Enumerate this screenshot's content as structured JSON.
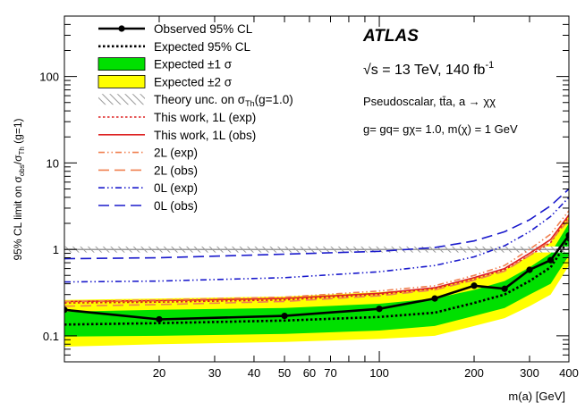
{
  "chart_data": {
    "type": "line",
    "xscale": "log",
    "yscale": "log",
    "xlim": [
      10,
      400
    ],
    "ylim": [
      0.05,
      500
    ],
    "xlabel": "m(a) [GeV]",
    "ylabel": "95% CL limit on σobs/σTh (g=1)",
    "ylabel_parts": {
      "main": "95% CL limit on σ",
      "sub1": "obs",
      "slash": "/σ",
      "sub2": "Th",
      "tail": " (g=1)"
    },
    "x_ticks": [
      20,
      30,
      40,
      50,
      60,
      70,
      100,
      200,
      300,
      400
    ],
    "x_tick_labels": [
      "20",
      "30",
      "40",
      "50",
      "60",
      "70",
      "100",
      "200",
      "300",
      "400"
    ],
    "y_ticks": [
      0.1,
      1,
      10,
      100
    ],
    "y_tick_labels": [
      "0.1",
      "1",
      "10",
      "100"
    ],
    "annotations": {
      "experiment": "ATLAS",
      "energy_prefix": "√s = 13 TeV, 140 fb",
      "energy_sup": "-1",
      "process": "Pseudoscalar, tt̄a, a → χχ",
      "couplings": "g= gq= gχ= 1.0, m(χ) = 1 GeV"
    },
    "bands": [
      {
        "name": "Expected ±2 σ",
        "color": "#ffff00",
        "x": [
          10,
          20,
          50,
          100,
          150,
          200,
          250,
          300,
          350,
          400
        ],
        "lower": [
          0.075,
          0.08,
          0.085,
          0.092,
          0.1,
          0.13,
          0.16,
          0.22,
          0.3,
          0.65
        ],
        "upper": [
          0.26,
          0.27,
          0.285,
          0.32,
          0.36,
          0.46,
          0.58,
          0.85,
          1.2,
          2.6
        ]
      },
      {
        "name": "Expected ±1 σ",
        "color": "#00e000",
        "x": [
          10,
          20,
          50,
          100,
          150,
          200,
          250,
          300,
          350,
          400
        ],
        "lower": [
          0.098,
          0.1,
          0.105,
          0.115,
          0.13,
          0.17,
          0.21,
          0.3,
          0.4,
          0.85
        ],
        "upper": [
          0.19,
          0.2,
          0.21,
          0.235,
          0.27,
          0.34,
          0.43,
          0.62,
          0.9,
          2.0
        ]
      }
    ],
    "series": [
      {
        "name": "Theory unc. on σTh(g=1.0)",
        "legend_main": "Theory unc. on σ",
        "legend_sub": "Th",
        "legend_tail": "(g=1.0)",
        "style": "hatch",
        "x": [
          10,
          400
        ],
        "lower": [
          0.92,
          0.92
        ],
        "upper": [
          1.08,
          1.08
        ]
      },
      {
        "name": "This work, 1L (exp)",
        "style": "dotted",
        "color": "#dd2222",
        "x": [
          10,
          20,
          50,
          100,
          150,
          200,
          250,
          300,
          350,
          400
        ],
        "values": [
          0.24,
          0.245,
          0.26,
          0.3,
          0.35,
          0.45,
          0.58,
          0.85,
          1.2,
          2.4
        ]
      },
      {
        "name": "This work, 1L (obs)",
        "style": "solid",
        "color": "#dd2222",
        "x": [
          10,
          20,
          50,
          100,
          150,
          200,
          250,
          300,
          350,
          400
        ],
        "values": [
          0.25,
          0.255,
          0.27,
          0.31,
          0.36,
          0.47,
          0.6,
          0.9,
          1.3,
          2.5
        ]
      },
      {
        "name": "2L (exp)",
        "style": "dashdotdot",
        "color": "#f08050",
        "x": [
          10,
          20,
          50,
          100,
          150,
          200,
          250,
          300,
          350,
          400
        ],
        "values": [
          0.25,
          0.26,
          0.28,
          0.33,
          0.38,
          0.5,
          0.65,
          1.0,
          1.5,
          2.8
        ]
      },
      {
        "name": "2L (obs)",
        "style": "longdash",
        "color": "#f08050",
        "x": [
          10,
          20,
          50,
          100,
          150,
          200,
          250,
          300,
          350,
          400
        ],
        "values": [
          0.22,
          0.23,
          0.25,
          0.29,
          0.34,
          0.44,
          0.56,
          0.85,
          1.25,
          2.2
        ]
      },
      {
        "name": "0L (exp)",
        "style": "dashdotdot",
        "color": "#1a1acc",
        "x": [
          10,
          20,
          50,
          100,
          150,
          200,
          250,
          300,
          350,
          400
        ],
        "values": [
          0.42,
          0.43,
          0.47,
          0.55,
          0.65,
          0.82,
          1.1,
          1.6,
          2.4,
          4.0
        ]
      },
      {
        "name": "0L (obs)",
        "style": "longdash",
        "color": "#1a1acc",
        "x": [
          10,
          20,
          50,
          100,
          150,
          200,
          250,
          300,
          350,
          400
        ],
        "values": [
          0.78,
          0.8,
          0.88,
          0.95,
          1.05,
          1.25,
          1.6,
          2.2,
          3.2,
          5.0
        ]
      },
      {
        "name": "Expected 95% CL",
        "style": "dotted",
        "color": "#000000",
        "x": [
          10,
          20,
          50,
          100,
          150,
          200,
          250,
          300,
          350,
          400
        ],
        "values": [
          0.135,
          0.14,
          0.15,
          0.165,
          0.185,
          0.24,
          0.3,
          0.43,
          0.62,
          1.3
        ]
      },
      {
        "name": "Observed 95% CL",
        "style": "solid-markers",
        "color": "#000000",
        "x": [
          10,
          20,
          50,
          100,
          150,
          200,
          250,
          300,
          350,
          400
        ],
        "values": [
          0.2,
          0.155,
          0.17,
          0.205,
          0.27,
          0.38,
          0.35,
          0.58,
          0.75,
          1.45
        ]
      }
    ],
    "legend": {
      "position": "top-left",
      "entries": [
        {
          "label": "Observed 95% CL",
          "kind": "observed"
        },
        {
          "label": "Expected 95% CL",
          "kind": "expected"
        },
        {
          "label": "Expected ±1 σ",
          "kind": "band1"
        },
        {
          "label": "Expected ±2 σ",
          "kind": "band2"
        },
        {
          "label": "Theory unc. on σTh(g=1.0)",
          "kind": "theory"
        },
        {
          "label": "This work, 1L (exp)",
          "kind": "work_exp"
        },
        {
          "label": "This work, 1L (obs)",
          "kind": "work_obs"
        },
        {
          "label": "2L (exp)",
          "kind": "2l_exp"
        },
        {
          "label": "2L (obs)",
          "kind": "2l_obs"
        },
        {
          "label": "0L (exp)",
          "kind": "0l_exp"
        },
        {
          "label": "0L (obs)",
          "kind": "0l_obs"
        }
      ]
    }
  }
}
